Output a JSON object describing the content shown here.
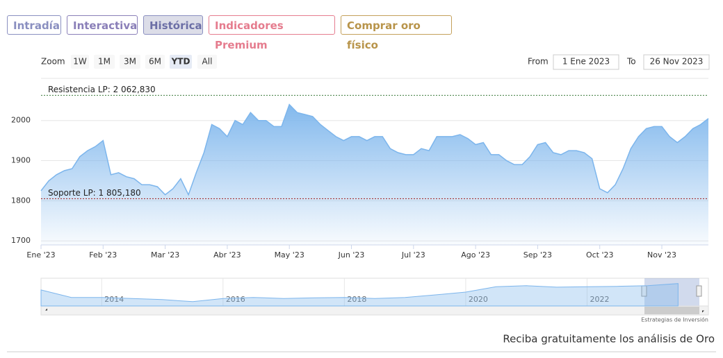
{
  "tabs": [
    "Intradía",
    "Interactiva",
    "Histórica",
    "Indicadores Premium",
    "Comprar oro físico"
  ],
  "zoom": {
    "label": "Zoom",
    "buttons": [
      "1W",
      "1M",
      "3M",
      "6M",
      "YTD",
      "All"
    ]
  },
  "range": {
    "from_label": "From",
    "from": "1 Ene 2023",
    "to_label": "To",
    "to": "26 Nov 2023"
  },
  "chart_data": {
    "type": "area",
    "categories": [
      "Ene '23",
      null,
      null,
      null,
      null,
      null,
      null,
      null,
      "Feb '23",
      null,
      null,
      null,
      null,
      null,
      null,
      null,
      "Mar '23",
      null,
      null,
      null,
      null,
      null,
      null,
      null,
      "Abr '23",
      null,
      null,
      null,
      null,
      null,
      null,
      null,
      "May '23",
      null,
      null,
      null,
      null,
      null,
      null,
      null,
      "Jun '23",
      null,
      null,
      null,
      null,
      null,
      null,
      null,
      "Jul '23",
      null,
      null,
      null,
      null,
      null,
      null,
      null,
      "Ago '23",
      null,
      null,
      null,
      null,
      null,
      null,
      null,
      "Sep '23",
      null,
      null,
      null,
      null,
      null,
      null,
      null,
      "Oct '23",
      null,
      null,
      null,
      null,
      null,
      null,
      null,
      "Nov '23",
      null,
      null,
      null,
      null,
      null,
      null
    ],
    "series": [
      {
        "color": "#7cb5ec",
        "values": [
          1825,
          1850,
          1865,
          1875,
          1880,
          1910,
          1925,
          1935,
          1950,
          1865,
          1870,
          1860,
          1855,
          1840,
          1840,
          1835,
          1815,
          1830,
          1855,
          1815,
          1870,
          1920,
          1990,
          1980,
          1960,
          2000,
          1990,
          2020,
          2000,
          2000,
          1985,
          1985,
          2040,
          2020,
          2015,
          2010,
          1990,
          1975,
          1960,
          1950,
          1960,
          1960,
          1950,
          1960,
          1960,
          1930,
          1920,
          1915,
          1915,
          1930,
          1925,
          1960,
          1960,
          1960,
          1965,
          1955,
          1940,
          1945,
          1915,
          1915,
          1900,
          1890,
          1890,
          1910,
          1940,
          1945,
          1920,
          1915,
          1925,
          1925,
          1920,
          1905,
          1830,
          1820,
          1840,
          1880,
          1930,
          1960,
          1980,
          1985,
          1985,
          1960,
          1945,
          1960,
          1980,
          1990,
          2005
        ]
      }
    ],
    "ylim": [
      1690,
      2105
    ],
    "yticks": [
      1700,
      1800,
      1900,
      2000
    ],
    "grid": true,
    "annotations": [
      {
        "label": "Resistencia LP: 2 062,830",
        "value": 2062.83,
        "color": "#3a7a3a"
      },
      {
        "label": "Soporte LP: 1 805,180",
        "value": 1805.18,
        "color": "#a01818"
      }
    ]
  },
  "navigator": {
    "x": [
      2013,
      2013.5,
      2014,
      2014.5,
      2015,
      2015.5,
      2016,
      2016.5,
      2017,
      2017.5,
      2018,
      2018.5,
      2019,
      2019.5,
      2020,
      2020.5,
      2021,
      2021.5,
      2022,
      2022.5,
      2023,
      2023.5
    ],
    "values": [
      1650,
      1300,
      1300,
      1250,
      1200,
      1100,
      1250,
      1300,
      1250,
      1280,
      1300,
      1250,
      1300,
      1420,
      1550,
      1800,
      1850,
      1780,
      1800,
      1820,
      1850,
      1950
    ],
    "xlim": [
      2013,
      2024
    ],
    "ylim": [
      900,
      2200
    ],
    "xticks": [
      2014,
      2016,
      2018,
      2020,
      2022
    ]
  },
  "credits": "Estrategias de Inversión",
  "footer": "Reciba gratuitamente los análisis de Oro"
}
